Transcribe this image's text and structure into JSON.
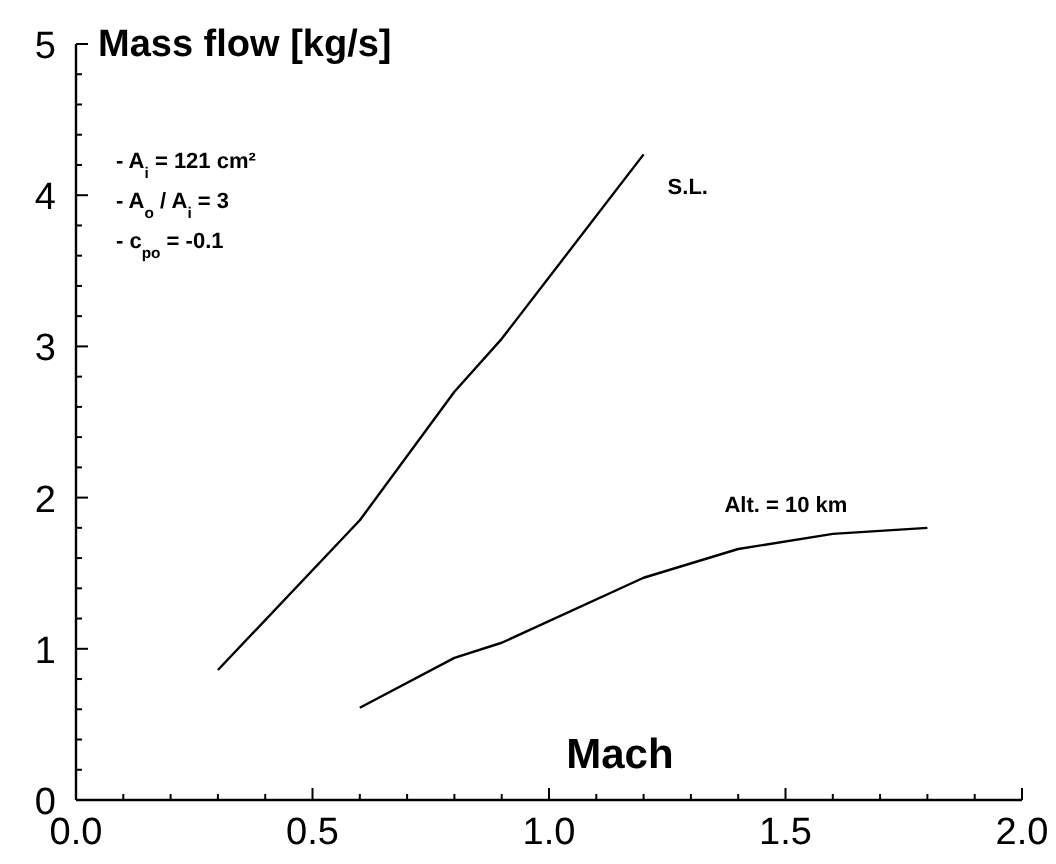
{
  "chart_data": {
    "type": "line",
    "ylabel": "Mass flow [kg/s]",
    "xlabel": "Mach",
    "xlim": [
      0,
      2
    ],
    "ylim": [
      0,
      5
    ],
    "xticks": [
      {
        "value": 0,
        "label": "0.0"
      },
      {
        "value": 0.1,
        "label": null
      },
      {
        "value": 0.2,
        "label": null
      },
      {
        "value": 0.3,
        "label": null
      },
      {
        "value": 0.4,
        "label": null
      },
      {
        "value": 0.5,
        "label": "0.5"
      },
      {
        "value": 0.6,
        "label": null
      },
      {
        "value": 0.7,
        "label": null
      },
      {
        "value": 0.8,
        "label": null
      },
      {
        "value": 0.9,
        "label": null
      },
      {
        "value": 1,
        "label": "1.0"
      },
      {
        "value": 1.1,
        "label": null
      },
      {
        "value": 1.2,
        "label": null
      },
      {
        "value": 1.3,
        "label": null
      },
      {
        "value": 1.4,
        "label": null
      },
      {
        "value": 1.5,
        "label": "1.5"
      },
      {
        "value": 1.6,
        "label": null
      },
      {
        "value": 1.7,
        "label": null
      },
      {
        "value": 1.8,
        "label": null
      },
      {
        "value": 1.9,
        "label": null
      },
      {
        "value": 2,
        "label": "2.0"
      }
    ],
    "yticks": [
      0,
      {
        "value": 0.2,
        "label": null
      },
      {
        "value": 0.4,
        "label": null
      },
      {
        "value": 0.6,
        "label": null
      },
      {
        "value": 0.8,
        "label": null
      },
      1,
      {
        "value": 1.2,
        "label": null
      },
      {
        "value": 1.4,
        "label": null
      },
      {
        "value": 1.6,
        "label": null
      },
      {
        "value": 1.8,
        "label": null
      },
      2,
      {
        "value": 2.2,
        "label": null
      },
      {
        "value": 2.4,
        "label": null
      },
      {
        "value": 2.6,
        "label": null
      },
      {
        "value": 2.8,
        "label": null
      },
      3,
      {
        "value": 3.2,
        "label": null
      },
      {
        "value": 3.4,
        "label": null
      },
      {
        "value": 3.6,
        "label": null
      },
      {
        "value": 3.8,
        "label": null
      },
      4,
      {
        "value": 4.2,
        "label": null
      },
      {
        "value": 4.4,
        "label": null
      },
      {
        "value": 4.6,
        "label": null
      },
      {
        "value": 4.8,
        "label": null
      },
      5
    ],
    "grid": false,
    "marker": "none",
    "line_style": "solid",
    "series": [
      {
        "name": "S.L.",
        "color": "#000000",
        "x": [
          0.3,
          0.6,
          0.8,
          0.9,
          1.2
        ],
        "values": [
          0.86,
          1.85,
          2.7,
          3.05,
          4.27
        ]
      },
      {
        "name": "Alt. = 10 km",
        "color": "#000000",
        "x": [
          0.6,
          0.8,
          0.9,
          1.2,
          1.4,
          1.6,
          1.8
        ],
        "values": [
          0.61,
          0.94,
          1.04,
          1.47,
          1.66,
          1.76,
          1.8
        ]
      }
    ],
    "annotations": [
      "- A$_{i}$ = 121 cm²",
      "- A$_{o}$ / A$_{i}$ = 3",
      "- c$_{po}$ = -0.1"
    ]
  }
}
